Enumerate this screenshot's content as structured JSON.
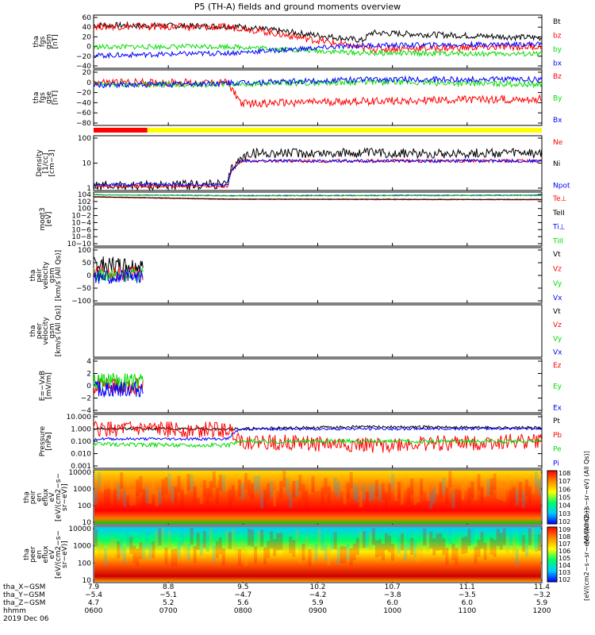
{
  "title": "P5 (TH-A) fields and ground moments overview",
  "date_label": "2019 Dec 06",
  "colors": {
    "black": "#000000",
    "red": "#ff0000",
    "green": "#00dd00",
    "blue": "#0000ff",
    "yellow": "#ffff00"
  },
  "chart_data": [
    {
      "type": "line",
      "panel": "fgs_gsm",
      "ylabel_lines": [
        "tha",
        "fgs",
        "gsm",
        "[nT]"
      ],
      "yticks": [
        "60",
        "40",
        "20",
        "0",
        "−20",
        "−40"
      ],
      "ylim": [
        -40,
        65
      ],
      "legend": [
        {
          "name": "Bt",
          "color": "#000000"
        },
        {
          "name": "bz",
          "color": "#ff0000"
        },
        {
          "name": "by",
          "color": "#00dd00"
        },
        {
          "name": "bx",
          "color": "#0000ff"
        }
      ],
      "series": [
        {
          "name": "Bt",
          "baseline": [
            [
              0,
              45
            ],
            [
              0.3,
              43
            ],
            [
              0.33,
              42
            ],
            [
              0.6,
              15
            ],
            [
              0.62,
              30
            ],
            [
              1,
              20
            ]
          ],
          "noise": 6
        },
        {
          "name": "bz",
          "baseline": [
            [
              0,
              43
            ],
            [
              0.3,
              41
            ],
            [
              0.33,
              40
            ],
            [
              0.6,
              0
            ],
            [
              0.62,
              -2
            ],
            [
              1,
              3
            ]
          ],
          "noise": 7
        },
        {
          "name": "by",
          "baseline": [
            [
              0,
              2
            ],
            [
              0.3,
              3
            ],
            [
              0.6,
              -10
            ],
            [
              1,
              -12
            ]
          ],
          "noise": 5
        },
        {
          "name": "bx",
          "baseline": [
            [
              0,
              -15
            ],
            [
              0.3,
              -10
            ],
            [
              0.6,
              5
            ],
            [
              1,
              8
            ]
          ],
          "noise": 5
        }
      ]
    },
    {
      "type": "line",
      "panel": "fgs_gse",
      "ylabel_lines": [
        "tha",
        "fgs",
        "gse",
        "[nT]"
      ],
      "yticks": [
        "20",
        "0",
        "−20",
        "−40",
        "−60",
        "−80"
      ],
      "ylim": [
        -85,
        30
      ],
      "legend": [
        {
          "name": "Bz",
          "color": "#ff0000"
        },
        {
          "name": "By",
          "color": "#00dd00"
        },
        {
          "name": "Bx",
          "color": "#0000ff"
        }
      ],
      "series": [
        {
          "name": "Bz",
          "baseline": [
            [
              0,
              4
            ],
            [
              0.3,
              3
            ],
            [
              0.33,
              -40
            ],
            [
              0.6,
              -35
            ],
            [
              1,
              -30
            ]
          ],
          "noise": 8
        },
        {
          "name": "By",
          "baseline": [
            [
              0,
              0
            ],
            [
              0.3,
              0
            ],
            [
              0.6,
              5
            ],
            [
              1,
              0
            ]
          ],
          "noise": 6
        },
        {
          "name": "Bx",
          "baseline": [
            [
              0,
              -2
            ],
            [
              0.3,
              2
            ],
            [
              0.6,
              10
            ],
            [
              1,
              10
            ]
          ],
          "noise": 6
        }
      ]
    },
    {
      "type": "line",
      "panel": "density",
      "ylabel_lines": [
        "Density",
        "[1/cc]",
        "[cm−3]"
      ],
      "yticks": [
        "100",
        "10",
        "1"
      ],
      "ylim": [
        0.3,
        200
      ],
      "log": true,
      "legend": [
        {
          "name": "Ne",
          "color": "#ff0000"
        },
        {
          "name": "Ni",
          "color": "#000000"
        },
        {
          "name": "Npot",
          "color": "#0000ff"
        }
      ],
      "series": [
        {
          "name": "Ni",
          "baseline": [
            [
              0,
              0.5
            ],
            [
              0.3,
              0.6
            ],
            [
              0.33,
              12
            ],
            [
              0.35,
              25
            ],
            [
              1,
              25
            ]
          ],
          "noise": 0.25
        },
        {
          "name": "Ne",
          "baseline": [
            [
              0,
              0.5
            ],
            [
              0.3,
              0.5
            ],
            [
              0.33,
              10
            ],
            [
              1,
              10
            ]
          ],
          "noise": 0.08
        },
        {
          "name": "Npot",
          "baseline": [
            [
              0,
              0.6
            ],
            [
              0.3,
              0.6
            ],
            [
              0.33,
              10
            ],
            [
              1,
              10
            ]
          ],
          "noise": 0.08
        }
      ]
    },
    {
      "type": "line",
      "panel": "temperature",
      "ylabel_lines": [
        "moqt3",
        "[eV]"
      ],
      "yticks": [
        "104",
        "102",
        "100",
        "10−2",
        "10−4",
        "10−6",
        "10−8",
        "10−10"
      ],
      "ylim": [
        -10,
        4
      ],
      "legend": [
        {
          "name": "Te⊥",
          "color": "#ff0000"
        },
        {
          "name": "TeII",
          "color": "#000000"
        },
        {
          "name": "Ti⊥",
          "color": "#0000ff"
        },
        {
          "name": "TiII",
          "color": "#00dd00"
        }
      ],
      "series": [
        {
          "name": "Ti⊥",
          "baseline": [
            [
              0,
              3.3
            ],
            [
              0.3,
              3.1
            ],
            [
              1,
              3.2
            ]
          ],
          "noise": 0.08
        },
        {
          "name": "TiII",
          "baseline": [
            [
              0,
              3.3
            ],
            [
              0.3,
              3.0
            ],
            [
              1,
              3.1
            ]
          ],
          "noise": 0.08
        },
        {
          "name": "Te⊥",
          "baseline": [
            [
              0,
              2.7
            ],
            [
              0.3,
              2.1
            ],
            [
              1,
              2.0
            ]
          ],
          "noise": 0.05
        },
        {
          "name": "TeII",
          "baseline": [
            [
              0,
              2.8
            ],
            [
              0.3,
              2.2
            ],
            [
              1,
              2.1
            ]
          ],
          "noise": 0.05
        }
      ]
    },
    {
      "type": "line",
      "panel": "peir_velocity",
      "ylabel_lines": [
        "tha",
        "peir",
        "velocity",
        "gsm",
        "[km/s (All Qs)]"
      ],
      "yticks": [
        "100",
        "50",
        "0",
        "−50",
        "−100"
      ],
      "ylim": [
        -100,
        100
      ],
      "legend": [
        {
          "name": "Vt",
          "color": "#000000"
        },
        {
          "name": "Vz",
          "color": "#ff0000"
        },
        {
          "name": "Vy",
          "color": "#00dd00"
        },
        {
          "name": "Vx",
          "color": "#0000ff"
        }
      ],
      "x_extent": [
        0,
        0.11
      ],
      "series": [
        {
          "name": "Vt",
          "baseline": [
            [
              0,
              40
            ],
            [
              0.11,
              35
            ]
          ],
          "noise": 30
        },
        {
          "name": "Vz",
          "baseline": [
            [
              0,
              10
            ],
            [
              0.11,
              5
            ]
          ],
          "noise": 25
        },
        {
          "name": "Vy",
          "baseline": [
            [
              0,
              0
            ],
            [
              0.11,
              0
            ]
          ],
          "noise": 25
        },
        {
          "name": "Vx",
          "baseline": [
            [
              0,
              -5
            ],
            [
              0.11,
              -5
            ]
          ],
          "noise": 25
        }
      ]
    },
    {
      "type": "line",
      "panel": "peer_velocity",
      "ylabel_lines": [
        "tha",
        "peer",
        "velocity",
        "gsm",
        "[km/s (All Qs)]"
      ],
      "yticks": [],
      "legend": [
        {
          "name": "Vt",
          "color": "#000000"
        },
        {
          "name": "Vz",
          "color": "#ff0000"
        },
        {
          "name": "Vy",
          "color": "#00dd00"
        },
        {
          "name": "Vx",
          "color": "#0000ff"
        }
      ],
      "series": []
    },
    {
      "type": "line",
      "panel": "efield",
      "ylabel_lines": [
        "E=−VxB",
        "[mV/m]"
      ],
      "yticks": [
        "4",
        "2",
        "0",
        "−2",
        "−4"
      ],
      "ylim": [
        -4,
        4
      ],
      "legend": [
        {
          "name": "Ez",
          "color": "#ff0000"
        },
        {
          "name": "Ey",
          "color": "#00dd00"
        },
        {
          "name": "Ex",
          "color": "#0000ff"
        }
      ],
      "x_extent": [
        0,
        0.11
      ],
      "series": [
        {
          "name": "Ez",
          "baseline": [
            [
              0,
              0
            ],
            [
              0.11,
              0
            ]
          ],
          "noise": 1.2
        },
        {
          "name": "Ey",
          "baseline": [
            [
              0,
              0.5
            ],
            [
              0.11,
              0.5
            ]
          ],
          "noise": 1.4
        },
        {
          "name": "Ex",
          "baseline": [
            [
              0,
              -0.5
            ],
            [
              0.11,
              -0.5
            ]
          ],
          "noise": 1.2
        }
      ]
    },
    {
      "type": "line",
      "panel": "pressure",
      "ylabel_lines": [
        "Pressure",
        "[nPa]"
      ],
      "yticks": [
        "10.000",
        "1.000",
        "0.100",
        "0.010",
        "0.001"
      ],
      "ylim": [
        0.001,
        10
      ],
      "log": true,
      "legend": [
        {
          "name": "Pt",
          "color": "#000000"
        },
        {
          "name": "Pb",
          "color": "#ff0000"
        },
        {
          "name": "Pe",
          "color": "#00dd00"
        },
        {
          "name": "Pi",
          "color": "#0000ff"
        }
      ],
      "series": [
        {
          "name": "Pt",
          "baseline": [
            [
              0,
              0.9
            ],
            [
              0.3,
              0.8
            ],
            [
              0.6,
              1.2
            ],
            [
              1,
              1.0
            ]
          ],
          "noise": 0.1
        },
        {
          "name": "Pi",
          "baseline": [
            [
              0,
              0.15
            ],
            [
              0.3,
              0.15
            ],
            [
              0.33,
              0.8
            ],
            [
              1,
              0.9
            ]
          ],
          "noise": 0.1
        },
        {
          "name": "Pb",
          "baseline": [
            [
              0,
              0.8
            ],
            [
              0.3,
              0.7
            ],
            [
              0.33,
              0.1
            ],
            [
              0.6,
              0.05
            ],
            [
              1,
              0.1
            ]
          ],
          "noise": 0.6
        },
        {
          "name": "Pe",
          "baseline": [
            [
              0,
              0.06
            ],
            [
              0.3,
              0.05
            ],
            [
              0.33,
              0.1
            ],
            [
              1,
              0.1
            ]
          ],
          "noise": 0.15
        }
      ]
    },
    {
      "type": "heatmap",
      "panel": "peir_spectrogram",
      "ylabel_lines": [
        "tha",
        "peir",
        "en",
        "eflux",
        "eV",
        "[eV/(cm2−s−",
        "sr−eV)]"
      ],
      "yticks": [
        "10000",
        "1000",
        "100",
        "10"
      ],
      "colorbar_label": "[eV/(cm2−s−sr−eV) (All Qs)]",
      "colorbar_ticks": [
        "108",
        "107",
        "106",
        "105",
        "104",
        "103",
        "102"
      ]
    },
    {
      "type": "heatmap",
      "panel": "peer_spectrogram",
      "ylabel_lines": [
        "tha",
        "peer",
        "en",
        "eflux",
        "eV",
        "[eV/(cm2−s−",
        "sr−eV)]"
      ],
      "yticks": [
        "10000",
        "1000",
        "100",
        "10"
      ],
      "colorbar_label": "[eV/(cm2−s−sr−eV) (All Qs)]",
      "colorbar_ticks": [
        "109",
        "108",
        "107",
        "106",
        "105",
        "104",
        "103",
        "102"
      ]
    }
  ],
  "x_axis": {
    "row_labels": [
      "tha_X−GSM",
      "tha_Y−GSM",
      "tha_Z−GSM",
      "hhmm",
      "2019 Dec 06"
    ],
    "ticks": [
      {
        "x": "7.9",
        "y": "−5.4",
        "z": "4.7",
        "t": "0600"
      },
      {
        "x": "8.8",
        "y": "−5.1",
        "z": "5.2",
        "t": "0700"
      },
      {
        "x": "9.5",
        "y": "−4.7",
        "z": "5.6",
        "t": "0800"
      },
      {
        "x": "10.2",
        "y": "−4.2",
        "z": "5.9",
        "t": "0900"
      },
      {
        "x": "10.7",
        "y": "−3.8",
        "z": "6.0",
        "t": "1000"
      },
      {
        "x": "11.1",
        "y": "−3.5",
        "z": "6.0",
        "t": "1100"
      },
      {
        "x": "11.4",
        "y": "−3.2",
        "z": "5.9",
        "t": "1200"
      }
    ]
  }
}
